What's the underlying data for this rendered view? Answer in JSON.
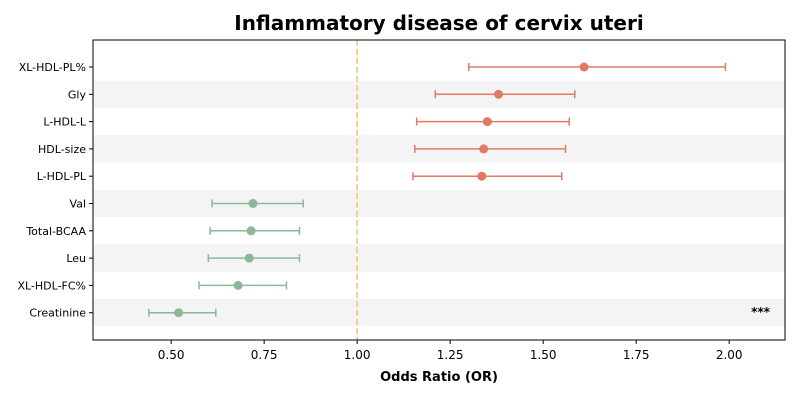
{
  "chart_data": {
    "type": "forest",
    "title": "Inflammatory disease of cervix uteri",
    "xlabel": "Odds Ratio (OR)",
    "ylabel": "",
    "xlim": [
      0.29,
      2.15
    ],
    "xticks": [
      "0.50",
      "0.75",
      "1.00",
      "1.25",
      "1.50",
      "1.75",
      "2.00"
    ],
    "reference_line": 1.0,
    "annotation": "***",
    "colors": {
      "risk": "#e07b62",
      "protective": "#8ab89b",
      "reference": "#f0c674",
      "band": "#f4f4f4"
    },
    "series": [
      {
        "name": "XL-HDL-PL%",
        "or": 1.61,
        "lower": 1.3,
        "upper": 1.99,
        "group": "risk"
      },
      {
        "name": "Gly",
        "or": 1.38,
        "lower": 1.21,
        "upper": 1.585,
        "group": "risk"
      },
      {
        "name": "L-HDL-L",
        "or": 1.35,
        "lower": 1.16,
        "upper": 1.57,
        "group": "risk"
      },
      {
        "name": "HDL-size",
        "or": 1.34,
        "lower": 1.155,
        "upper": 1.56,
        "group": "risk"
      },
      {
        "name": "L-HDL-PL",
        "or": 1.335,
        "lower": 1.15,
        "upper": 1.55,
        "group": "risk"
      },
      {
        "name": "Val",
        "or": 0.72,
        "lower": 0.61,
        "upper": 0.855,
        "group": "protective"
      },
      {
        "name": "Total-BCAA",
        "or": 0.715,
        "lower": 0.605,
        "upper": 0.845,
        "group": "protective"
      },
      {
        "name": "Leu",
        "or": 0.71,
        "lower": 0.6,
        "upper": 0.845,
        "group": "protective"
      },
      {
        "name": "XL-HDL-FC%",
        "or": 0.68,
        "lower": 0.575,
        "upper": 0.81,
        "group": "protective"
      },
      {
        "name": "Creatinine",
        "or": 0.52,
        "lower": 0.44,
        "upper": 0.62,
        "group": "protective"
      }
    ]
  }
}
